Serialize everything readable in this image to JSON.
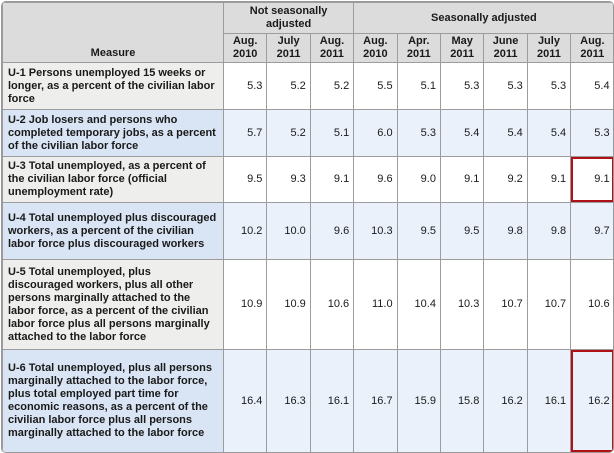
{
  "table": {
    "measure_header": "Measure",
    "groups": {
      "nsa": "Not seasonally adjusted",
      "sa": "Seasonally adjusted"
    },
    "columns": [
      {
        "month": "Aug.",
        "year": "2010"
      },
      {
        "month": "July",
        "year": "2011"
      },
      {
        "month": "Aug.",
        "year": "2011"
      },
      {
        "month": "Aug.",
        "year": "2010"
      },
      {
        "month": "Apr.",
        "year": "2011"
      },
      {
        "month": "May",
        "year": "2011"
      },
      {
        "month": "June",
        "year": "2011"
      },
      {
        "month": "July",
        "year": "2011"
      },
      {
        "month": "Aug.",
        "year": "2011"
      }
    ],
    "rows": [
      {
        "label": "U-1 Persons unemployed 15 weeks or longer, as a percent of the civilian labor force",
        "values": [
          "5.3",
          "5.2",
          "5.2",
          "5.5",
          "5.1",
          "5.3",
          "5.3",
          "5.3",
          "5.4"
        ],
        "highlighted_column": null
      },
      {
        "label": "U-2 Job losers and persons who completed temporary jobs, as a percent of the civilian labor force",
        "values": [
          "5.7",
          "5.2",
          "5.1",
          "6.0",
          "5.3",
          "5.4",
          "5.4",
          "5.4",
          "5.3"
        ],
        "highlighted_column": null
      },
      {
        "label": "U-3 Total unemployed, as a percent of the civilian labor force (official unemployment rate)",
        "values": [
          "9.5",
          "9.3",
          "9.1",
          "9.6",
          "9.0",
          "9.1",
          "9.2",
          "9.1",
          "9.1"
        ],
        "highlighted_column": 8
      },
      {
        "label": "U-4 Total unemployed plus discouraged workers, as a percent of the civilian labor force plus discouraged workers",
        "values": [
          "10.2",
          "10.0",
          "9.6",
          "10.3",
          "9.5",
          "9.5",
          "9.8",
          "9.8",
          "9.7"
        ],
        "highlighted_column": null
      },
      {
        "label": "U-5 Total unemployed, plus discouraged workers, plus all other persons marginally attached to the labor force, as a percent of the civilian labor force plus all persons marginally attached to the labor force",
        "values": [
          "10.9",
          "10.9",
          "10.6",
          "11.0",
          "10.4",
          "10.3",
          "10.7",
          "10.7",
          "10.6"
        ],
        "highlighted_column": null
      },
      {
        "label": "U-6 Total unemployed, plus all persons marginally attached to the labor force, plus total employed part time for economic reasons, as a percent of the civilian labor force plus all persons marginally attached to the labor force",
        "values": [
          "16.4",
          "16.3",
          "16.1",
          "16.7",
          "15.9",
          "15.8",
          "16.2",
          "16.1",
          "16.2"
        ],
        "highlighted_column": 8
      }
    ]
  },
  "colors": {
    "header_bg": "#dcdcdc",
    "gray_row_label_bg": "#eeeeec",
    "gray_row_data_bg": "#ffffff",
    "blue_row_label_bg": "#d9e4f4",
    "blue_row_data_bg": "#eaf1fb",
    "grid_border": "#9c9c9c",
    "highlight_border": "#b01116",
    "text": "#1a1a1a"
  }
}
